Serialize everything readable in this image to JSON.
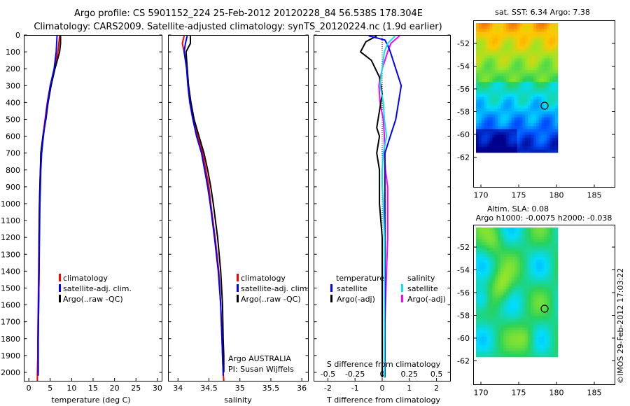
{
  "header": {
    "line1": "Argo profile: CS 5901152_224 25-Feb-2012 20120228_84 56.538S 178.304E",
    "line2": "Climatology: CARS2009. Satellite-adjusted climatology: synTS_20120224.nc (1.9d earlier)"
  },
  "footer_stamp": "©IMOS 29-Feb-2012 17:03:22",
  "colors": {
    "climatology": "#ff0000",
    "satellite": "#0000ff",
    "argo": "#000000",
    "sal_satellite": "#00e5ee",
    "sal_argo": "#ff00ff"
  },
  "depth_ticks": [
    "0",
    "100",
    "200",
    "300",
    "400",
    "500",
    "600",
    "700",
    "800",
    "900",
    "1000",
    "1100",
    "1200",
    "1300",
    "1400",
    "1500",
    "1600",
    "1700",
    "1800",
    "1900",
    "2000"
  ],
  "panel_temp": {
    "xlabel": "temperature (deg C)",
    "xticks": [
      "0",
      "5",
      "10",
      "15",
      "20",
      "25",
      "30"
    ],
    "legend": [
      "climatology",
      "satellite-adj. clim.",
      "Argo(..raw -QC)"
    ]
  },
  "panel_sal": {
    "xlabel": "salinity",
    "xticks": [
      "34",
      "34.5",
      "35",
      "35.5",
      "36"
    ],
    "legend": [
      "climatology",
      "satellite-adj. clim.",
      "Argo(..raw -QC)"
    ],
    "note1": "Argo AUSTRALIA",
    "note2": "PI: Susan Wijffels"
  },
  "panel_diff": {
    "xlabel": "T difference from climatology",
    "top_label": "S difference from climatology",
    "xticks_T": [
      "-2",
      "-1",
      "0",
      "1",
      "2"
    ],
    "xticks_S": [
      "-0.5",
      "-0.25",
      "0",
      "0.25",
      "0.5"
    ],
    "legend_temp_title": "temperature",
    "legend_sal_title": "salinity",
    "legend_temp": [
      "satellite",
      "Argo(-adj)"
    ],
    "legend_sal": [
      "satellite",
      "Argo(-adj)"
    ]
  },
  "map_sst": {
    "title": "sat. SST: 6.34  Argo: 7.38",
    "yticks": [
      "-52",
      "-54",
      "-56",
      "-58",
      "-60",
      "-62"
    ],
    "xticks": [
      "170",
      "175",
      "180",
      "185"
    ]
  },
  "map_sla": {
    "title1": "Altim. SLA: 0.08",
    "title2": "Argo h1000: -0.0075 h2000: -0.038",
    "yticks": [
      "-52",
      "-54",
      "-56",
      "-58",
      "-60",
      "-62"
    ],
    "xticks": [
      "170",
      "175",
      "180",
      "185"
    ]
  },
  "chart_data": [
    {
      "type": "line",
      "xlabel": "temperature (deg C)",
      "ylim": [
        2050,
        0
      ],
      "xlim": [
        -1,
        31
      ],
      "series": [
        {
          "name": "climatology",
          "x": [
            7.2,
            7.0,
            6.8,
            6.0,
            5.0,
            4.3,
            3.8,
            3.3,
            2.9,
            2.7,
            2.6,
            2.5,
            2.4,
            2.3,
            2.2,
            2.1,
            2.1,
            2.0,
            2.0
          ],
          "y": [
            5,
            50,
            100,
            200,
            300,
            400,
            500,
            600,
            700,
            800,
            900,
            1000,
            1200,
            1400,
            1600,
            1800,
            1900,
            2000,
            2050
          ]
        },
        {
          "name": "satellite-adj. clim.",
          "x": [
            6.6,
            6.5,
            6.4,
            5.9,
            5.0,
            4.4,
            3.9,
            3.4,
            3.0,
            2.8,
            2.7,
            2.6,
            2.5,
            2.4,
            2.3,
            2.2,
            2.2,
            2.2,
            2.2
          ],
          "y": [
            5,
            50,
            100,
            200,
            300,
            400,
            500,
            600,
            700,
            800,
            900,
            1000,
            1200,
            1400,
            1600,
            1800,
            1900,
            2000,
            2020
          ]
        },
        {
          "name": "Argo(..raw -QC)",
          "x": [
            7.4,
            7.4,
            7.2,
            6.1,
            5.2,
            4.5,
            4.0,
            3.3,
            2.8,
            2.7,
            2.6,
            2.5,
            2.4,
            2.4,
            2.3,
            2.2,
            2.2,
            2.2
          ],
          "y": [
            5,
            50,
            100,
            200,
            300,
            400,
            500,
            600,
            700,
            800,
            900,
            1000,
            1200,
            1400,
            1600,
            1800,
            1900,
            2000
          ]
        }
      ]
    },
    {
      "type": "line",
      "xlabel": "salinity",
      "ylim": [
        2050,
        0
      ],
      "xlim": [
        33.85,
        36.1
      ],
      "series": [
        {
          "name": "climatology",
          "x": [
            34.1,
            34.07,
            34.1,
            34.15,
            34.17,
            34.2,
            34.25,
            34.32,
            34.4,
            34.45,
            34.5,
            34.53,
            34.6,
            34.66,
            34.69,
            34.71,
            34.72,
            34.73,
            34.74
          ],
          "y": [
            5,
            50,
            100,
            200,
            300,
            400,
            500,
            600,
            700,
            800,
            900,
            1000,
            1200,
            1400,
            1600,
            1800,
            1900,
            2000,
            2050
          ]
        },
        {
          "name": "satellite-adj. clim.",
          "x": [
            34.15,
            34.12,
            34.1,
            34.14,
            34.16,
            34.19,
            34.24,
            34.3,
            34.38,
            34.43,
            34.48,
            34.52,
            34.59,
            34.65,
            34.69,
            34.71,
            34.72,
            34.73,
            34.73
          ],
          "y": [
            5,
            50,
            100,
            200,
            300,
            400,
            500,
            600,
            700,
            800,
            900,
            1000,
            1200,
            1400,
            1600,
            1800,
            1900,
            2000,
            2020
          ]
        },
        {
          "name": "Argo(..raw -QC)",
          "x": [
            34.2,
            34.2,
            34.13,
            34.15,
            34.17,
            34.21,
            34.26,
            34.34,
            34.42,
            34.48,
            34.53,
            34.57,
            34.64,
            34.69,
            34.72,
            34.73,
            34.74,
            34.74
          ],
          "y": [
            5,
            50,
            100,
            200,
            300,
            400,
            500,
            600,
            700,
            800,
            900,
            1000,
            1200,
            1400,
            1600,
            1800,
            1900,
            2000
          ]
        }
      ]
    },
    {
      "type": "line",
      "xlabel": "T difference from climatology",
      "ylim": [
        2050,
        0
      ],
      "xlim": [
        -2.5,
        2.5
      ],
      "series": [
        {
          "name": "satellite",
          "x": [
            -0.5,
            0.1,
            0.2,
            0.3,
            0.5,
            0.7,
            0.6,
            0.5,
            0.3,
            0.1,
            0.1,
            0.1,
            0.1,
            0.1,
            0.1,
            0.1,
            0.1,
            0.1
          ],
          "y": [
            5,
            30,
            60,
            100,
            200,
            300,
            400,
            500,
            600,
            700,
            800,
            1000,
            1200,
            1400,
            1600,
            1800,
            1950,
            2030
          ]
        },
        {
          "name": "Argo(-adj)",
          "x": [
            -0.2,
            -0.6,
            -0.8,
            -0.4,
            -0.1,
            0.0,
            -0.1,
            -0.2,
            -0.1,
            -0.2,
            -0.1,
            -0.1,
            0.0,
            0.0,
            0.0,
            0.0,
            0.0,
            0.0
          ],
          "y": [
            5,
            40,
            100,
            150,
            250,
            350,
            450,
            550,
            600,
            700,
            800,
            1000,
            1200,
            1400,
            1600,
            1800,
            1950,
            2030
          ]
        }
      ]
    },
    {
      "type": "line",
      "xlabel": "S difference from climatology",
      "ylim": [
        2050,
        0
      ],
      "xlim": [
        -0.625,
        0.625
      ],
      "series": [
        {
          "name": "satellite",
          "x": [
            0.12,
            0.05,
            0.02,
            0.0,
            -0.02,
            0.01,
            0.02,
            0.04,
            0.01,
            0.0,
            0.0,
            0.01,
            0.02,
            0.02,
            0.02,
            0.02,
            0.02,
            0.02
          ],
          "y": [
            5,
            50,
            100,
            200,
            300,
            400,
            500,
            600,
            700,
            800,
            900,
            1000,
            1200,
            1400,
            1600,
            1800,
            1950,
            2030
          ]
        },
        {
          "name": "Argo(-adj)",
          "x": [
            0.16,
            0.08,
            0.05,
            0.0,
            -0.03,
            -0.02,
            0.01,
            0.02,
            0.02,
            0.03,
            0.05,
            0.05,
            0.05,
            0.04,
            0.03,
            0.02,
            0.02,
            0.02
          ],
          "y": [
            5,
            50,
            100,
            200,
            300,
            400,
            500,
            600,
            700,
            800,
            900,
            1000,
            1200,
            1400,
            1600,
            1800,
            1950,
            2030
          ]
        }
      ]
    }
  ]
}
